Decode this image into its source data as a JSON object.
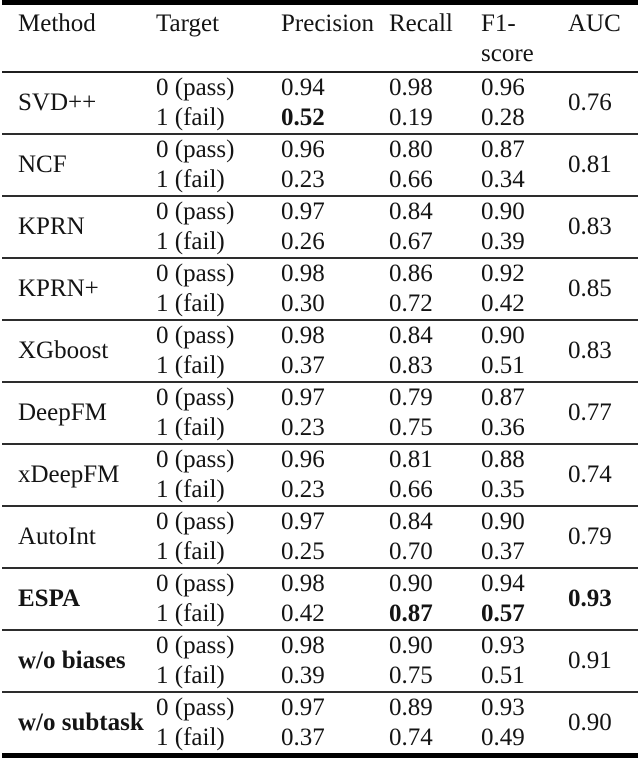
{
  "page": {
    "background_color": "#ffffff",
    "text_color": "#141414",
    "rule_color": "#000000"
  },
  "table": {
    "columns": [
      "Method",
      "Target",
      "Precision",
      "Recall",
      "F1-score",
      "AUC"
    ],
    "target_labels": [
      "0 (pass)",
      "1 (fail)"
    ],
    "groups": [
      {
        "method": "SVD++",
        "method_bold": false,
        "auc": "0.76",
        "auc_bold": false,
        "rows": [
          {
            "target": "0 (pass)",
            "precision": "0.94",
            "recall": "0.98",
            "f1": "0.96",
            "bold": []
          },
          {
            "target": "1 (fail)",
            "precision": "0.52",
            "recall": "0.19",
            "f1": "0.28",
            "bold": [
              "precision"
            ]
          }
        ]
      },
      {
        "method": "NCF",
        "method_bold": false,
        "auc": "0.81",
        "auc_bold": false,
        "rows": [
          {
            "target": "0 (pass)",
            "precision": "0.96",
            "recall": "0.80",
            "f1": "0.87",
            "bold": []
          },
          {
            "target": "1 (fail)",
            "precision": "0.23",
            "recall": "0.66",
            "f1": "0.34",
            "bold": []
          }
        ]
      },
      {
        "method": "KPRN",
        "method_bold": false,
        "auc": "0.83",
        "auc_bold": false,
        "rows": [
          {
            "target": "0 (pass)",
            "precision": "0.97",
            "recall": "0.84",
            "f1": "0.90",
            "bold": []
          },
          {
            "target": "1 (fail)",
            "precision": "0.26",
            "recall": "0.67",
            "f1": "0.39",
            "bold": []
          }
        ]
      },
      {
        "method": "KPRN+",
        "method_bold": false,
        "auc": "0.85",
        "auc_bold": false,
        "rows": [
          {
            "target": "0 (pass)",
            "precision": "0.98",
            "recall": "0.86",
            "f1": "0.92",
            "bold": []
          },
          {
            "target": "1 (fail)",
            "precision": "0.30",
            "recall": "0.72",
            "f1": "0.42",
            "bold": []
          }
        ]
      },
      {
        "method": "XGboost",
        "method_bold": false,
        "auc": "0.83",
        "auc_bold": false,
        "rows": [
          {
            "target": "0 (pass)",
            "precision": "0.98",
            "recall": "0.84",
            "f1": "0.90",
            "bold": []
          },
          {
            "target": "1 (fail)",
            "precision": "0.37",
            "recall": "0.83",
            "f1": "0.51",
            "bold": []
          }
        ]
      },
      {
        "method": "DeepFM",
        "method_bold": false,
        "auc": "0.77",
        "auc_bold": false,
        "rows": [
          {
            "target": "0 (pass)",
            "precision": "0.97",
            "recall": "0.79",
            "f1": "0.87",
            "bold": []
          },
          {
            "target": "1 (fail)",
            "precision": "0.23",
            "recall": "0.75",
            "f1": "0.36",
            "bold": []
          }
        ]
      },
      {
        "method": "xDeepFM",
        "method_bold": false,
        "auc": "0.74",
        "auc_bold": false,
        "rows": [
          {
            "target": "0 (pass)",
            "precision": "0.96",
            "recall": "0.81",
            "f1": "0.88",
            "bold": []
          },
          {
            "target": "1 (fail)",
            "precision": "0.23",
            "recall": "0.66",
            "f1": "0.35",
            "bold": []
          }
        ]
      },
      {
        "method": "AutoInt",
        "method_bold": false,
        "auc": "0.79",
        "auc_bold": false,
        "rows": [
          {
            "target": "0 (pass)",
            "precision": "0.97",
            "recall": "0.84",
            "f1": "0.90",
            "bold": []
          },
          {
            "target": "1 (fail)",
            "precision": "0.25",
            "recall": "0.70",
            "f1": "0.37",
            "bold": []
          }
        ]
      },
      {
        "method": "ESPA",
        "method_bold": true,
        "auc": "0.93",
        "auc_bold": true,
        "rows": [
          {
            "target": "0 (pass)",
            "precision": "0.98",
            "recall": "0.90",
            "f1": "0.94",
            "bold": []
          },
          {
            "target": "1 (fail)",
            "precision": "0.42",
            "recall": "0.87",
            "f1": "0.57",
            "bold": [
              "recall",
              "f1"
            ]
          }
        ]
      },
      {
        "method": "w/o biases",
        "method_bold": true,
        "auc": "0.91",
        "auc_bold": false,
        "rows": [
          {
            "target": "0 (pass)",
            "precision": "0.98",
            "recall": "0.90",
            "f1": "0.93",
            "bold": []
          },
          {
            "target": "1 (fail)",
            "precision": "0.39",
            "recall": "0.75",
            "f1": "0.51",
            "bold": []
          }
        ]
      },
      {
        "method": "w/o subtask",
        "method_bold": true,
        "auc": "0.90",
        "auc_bold": false,
        "rows": [
          {
            "target": "0 (pass)",
            "precision": "0.97",
            "recall": "0.89",
            "f1": "0.93",
            "bold": []
          },
          {
            "target": "1 (fail)",
            "precision": "0.37",
            "recall": "0.74",
            "f1": "0.49",
            "bold": []
          }
        ]
      }
    ]
  }
}
